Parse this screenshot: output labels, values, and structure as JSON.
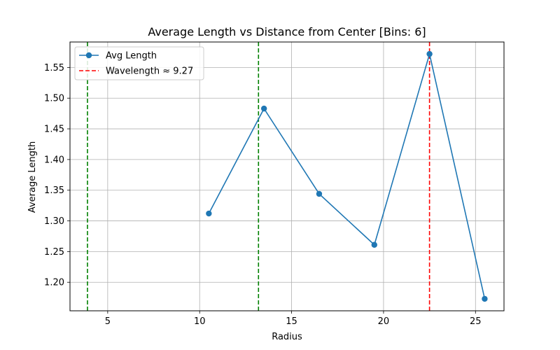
{
  "chart_data": {
    "type": "line",
    "title": "Average Length vs Distance from Center [Bins: 6]",
    "xlabel": "Radius",
    "ylabel": "Average Length",
    "xlim": [
      2.95,
      26.55
    ],
    "ylim": [
      1.1535,
      1.5915
    ],
    "xticks": [
      5,
      10,
      15,
      20,
      25
    ],
    "xtick_labels": [
      "5",
      "10",
      "15",
      "20",
      "25"
    ],
    "yticks": [
      1.2,
      1.25,
      1.3,
      1.35,
      1.4,
      1.45,
      1.5,
      1.55
    ],
    "ytick_labels": [
      "1.20",
      "1.25",
      "1.30",
      "1.35",
      "1.40",
      "1.45",
      "1.50",
      "1.55"
    ],
    "grid": true,
    "legend_position": "top-left",
    "series": [
      {
        "name": "Avg Length",
        "color": "#1f77b4",
        "marker": "circle",
        "x": [
          10.5,
          13.5,
          16.5,
          19.5,
          22.5,
          25.5
        ],
        "y": [
          1.312,
          1.483,
          1.344,
          1.261,
          1.572,
          1.173
        ]
      }
    ],
    "vlines": [
      {
        "x": 3.9,
        "color": "#008000",
        "style": "dashed"
      },
      {
        "x": 13.2,
        "color": "#008000",
        "style": "dashed"
      },
      {
        "x": 22.5,
        "color": "#ff0000",
        "style": "dashed",
        "name": "Wavelength ≈ 9.27"
      }
    ],
    "legend": [
      {
        "label": "Avg Length",
        "kind": "line-marker",
        "color": "#1f77b4"
      },
      {
        "label": "Wavelength ≈ 9.27",
        "kind": "dashed",
        "color": "#ff0000"
      }
    ]
  }
}
